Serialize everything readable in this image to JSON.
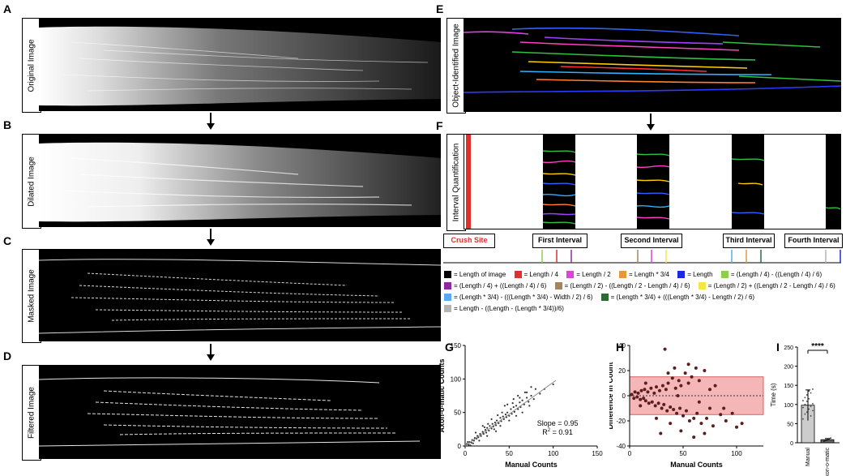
{
  "panels": {
    "A": {
      "letter": "A",
      "label": "Original Image"
    },
    "B": {
      "letter": "B",
      "label": "Dilated Image"
    },
    "C": {
      "letter": "C",
      "label": "Masked Image"
    },
    "D": {
      "letter": "D",
      "label": "Filtered Image"
    },
    "E": {
      "letter": "E",
      "label": "Object-Identified Image"
    },
    "F": {
      "letter": "F",
      "label": "Interval Quantification"
    },
    "G": {
      "letter": "G"
    },
    "H": {
      "letter": "H"
    },
    "I": {
      "letter": "I"
    }
  },
  "intervals": {
    "crush": "Crush Site",
    "first": "First Interval",
    "second": "Second Interval",
    "third": "Third Interval",
    "fourth": "Fourth Interval"
  },
  "legend": [
    {
      "color": "#000000",
      "text": "= Length of image"
    },
    {
      "color": "#e0302a",
      "text": "= Length / 4"
    },
    {
      "color": "#e040e0",
      "text": "= Length / 2"
    },
    {
      "color": "#e8963a",
      "text": "= Length * 3/4"
    },
    {
      "color": "#1a28e0",
      "text": "= Length"
    },
    {
      "color": "#8ccf4a",
      "text": "= (Length / 4) - ((Length / 4) / 6)"
    },
    {
      "color": "#8a2c9a",
      "text": "= (Length / 4) + ((Length / 4) / 6)"
    },
    {
      "color": "#a6845a",
      "text": "= (Length / 2) - ((Length / 2 - Length / 4) / 6)"
    },
    {
      "color": "#f5e646",
      "text": "= (Length / 2) + ((Length / 2 - Length / 4) / 6)"
    },
    {
      "color": "#5aaaf0",
      "text": "= (Length * 3/4) - (((Length * 3/4) - Width / 2) / 6)"
    },
    {
      "color": "#2e6a36",
      "text": "= (Length * 3/4) + (((Length * 3/4) - Length / 2) / 6)"
    },
    {
      "color": "#b4b4b4",
      "text": "= Length - ((Length - (Length * 3/4))/6)"
    }
  ],
  "chart_data": [
    {
      "type": "scatter",
      "panel": "G",
      "xlabel": "Manual Counts",
      "ylabel": "Axon-o-matic Counts",
      "xlim": [
        0,
        150
      ],
      "ylim": [
        0,
        150
      ],
      "xticks": [
        "0",
        "50",
        "100",
        "150"
      ],
      "yticks": [
        "0",
        "50",
        "100",
        "150"
      ],
      "annotation_slope": "Slope = 0.95",
      "annotation_r2": "R",
      "annotation_r2_sup": "2",
      "annotation_r2_val": " = 0.91",
      "fit": {
        "slope": 0.95,
        "intercept": 0,
        "x_range": [
          0,
          103
        ]
      },
      "points": [
        [
          2,
          3
        ],
        [
          4,
          2
        ],
        [
          5,
          6
        ],
        [
          7,
          5
        ],
        [
          8,
          9
        ],
        [
          10,
          8
        ],
        [
          11,
          12
        ],
        [
          13,
          11
        ],
        [
          14,
          15
        ],
        [
          15,
          13
        ],
        [
          17,
          18
        ],
        [
          18,
          15
        ],
        [
          20,
          21
        ],
        [
          21,
          18
        ],
        [
          23,
          24
        ],
        [
          24,
          20
        ],
        [
          25,
          27
        ],
        [
          27,
          23
        ],
        [
          28,
          30
        ],
        [
          30,
          26
        ],
        [
          31,
          33
        ],
        [
          32,
          29
        ],
        [
          34,
          35
        ],
        [
          35,
          31
        ],
        [
          36,
          38
        ],
        [
          38,
          34
        ],
        [
          40,
          42
        ],
        [
          41,
          37
        ],
        [
          43,
          44
        ],
        [
          44,
          40
        ],
        [
          46,
          47
        ],
        [
          47,
          43
        ],
        [
          48,
          50
        ],
        [
          50,
          45
        ],
        [
          52,
          55
        ],
        [
          53,
          48
        ],
        [
          55,
          58
        ],
        [
          56,
          51
        ],
        [
          58,
          60
        ],
        [
          60,
          55
        ],
        [
          62,
          65
        ],
        [
          63,
          58
        ],
        [
          65,
          68
        ],
        [
          67,
          62
        ],
        [
          70,
          72
        ],
        [
          72,
          66
        ],
        [
          75,
          75
        ],
        [
          78,
          70
        ],
        [
          80,
          85
        ],
        [
          85,
          78
        ],
        [
          60,
          75
        ],
        [
          70,
          80
        ],
        [
          45,
          60
        ],
        [
          50,
          38
        ],
        [
          30,
          40
        ],
        [
          25,
          15
        ],
        [
          65,
          50
        ],
        [
          75,
          88
        ],
        [
          55,
          70
        ],
        [
          40,
          30
        ],
        [
          20,
          30
        ],
        [
          35,
          22
        ],
        [
          90,
          85
        ],
        [
          100,
          92
        ],
        [
          48,
          62
        ],
        [
          58,
          45
        ],
        [
          68,
          80
        ],
        [
          12,
          20
        ],
        [
          16,
          8
        ],
        [
          3,
          6
        ],
        [
          6,
          1
        ],
        [
          9,
          4
        ],
        [
          22,
          28
        ],
        [
          26,
          33
        ],
        [
          33,
          25
        ],
        [
          37,
          46
        ],
        [
          42,
          50
        ],
        [
          54,
          64
        ],
        [
          62,
          72
        ],
        [
          73,
          60
        ]
      ]
    },
    {
      "type": "scatter",
      "panel": "H",
      "xlabel": "Manual Counts",
      "ylabel": "Difference in Count",
      "xlim": [
        0,
        125
      ],
      "ylim": [
        -40,
        40
      ],
      "xticks": [
        "0",
        "50",
        "100"
      ],
      "yticks": [
        "-40",
        "-20",
        "0",
        "20",
        "40"
      ],
      "band": [
        -15,
        15
      ],
      "band_color": "#f4b6b6",
      "points": [
        [
          2,
          1
        ],
        [
          4,
          -2
        ],
        [
          5,
          3
        ],
        [
          7,
          -1
        ],
        [
          8,
          2
        ],
        [
          10,
          -3
        ],
        [
          11,
          4
        ],
        [
          13,
          -2
        ],
        [
          14,
          5
        ],
        [
          15,
          -4
        ],
        [
          17,
          3
        ],
        [
          18,
          -6
        ],
        [
          20,
          6
        ],
        [
          21,
          -5
        ],
        [
          23,
          2
        ],
        [
          24,
          -8
        ],
        [
          25,
          7
        ],
        [
          27,
          -6
        ],
        [
          28,
          4
        ],
        [
          30,
          -10
        ],
        [
          31,
          8
        ],
        [
          32,
          -7
        ],
        [
          34,
          5
        ],
        [
          35,
          -12
        ],
        [
          36,
          10
        ],
        [
          38,
          -9
        ],
        [
          40,
          14
        ],
        [
          41,
          -11
        ],
        [
          43,
          6
        ],
        [
          44,
          -14
        ],
        [
          46,
          12
        ],
        [
          47,
          -10
        ],
        [
          48,
          8
        ],
        [
          50,
          -16
        ],
        [
          52,
          18
        ],
        [
          53,
          -12
        ],
        [
          55,
          10
        ],
        [
          56,
          -20
        ],
        [
          58,
          15
        ],
        [
          60,
          -18
        ],
        [
          62,
          22
        ],
        [
          63,
          -14
        ],
        [
          65,
          12
        ],
        [
          67,
          -22
        ],
        [
          70,
          20
        ],
        [
          72,
          -18
        ],
        [
          75,
          -10
        ],
        [
          78,
          -24
        ],
        [
          80,
          8
        ],
        [
          85,
          -15
        ],
        [
          33,
          37
        ],
        [
          42,
          22
        ],
        [
          29,
          -30
        ],
        [
          48,
          -28
        ],
        [
          60,
          -33
        ],
        [
          70,
          -30
        ],
        [
          90,
          -20
        ],
        [
          100,
          -25
        ],
        [
          105,
          -22
        ],
        [
          96,
          -14
        ],
        [
          88,
          -10
        ],
        [
          75,
          5
        ],
        [
          36,
          18
        ],
        [
          38,
          -22
        ],
        [
          55,
          25
        ],
        [
          45,
          0
        ],
        [
          65,
          -5
        ],
        [
          25,
          -18
        ],
        [
          15,
          10
        ],
        [
          10,
          -8
        ]
      ]
    },
    {
      "type": "bar",
      "panel": "I",
      "ylabel": "Time (s)",
      "ylim": [
        0,
        250
      ],
      "yticks": [
        "0",
        "50",
        "100",
        "150",
        "200",
        "250"
      ],
      "categories": [
        "Manual",
        "Axon-o-matic"
      ],
      "values": [
        98,
        8
      ],
      "errors": [
        40,
        3
      ],
      "significance": "****"
    }
  ]
}
